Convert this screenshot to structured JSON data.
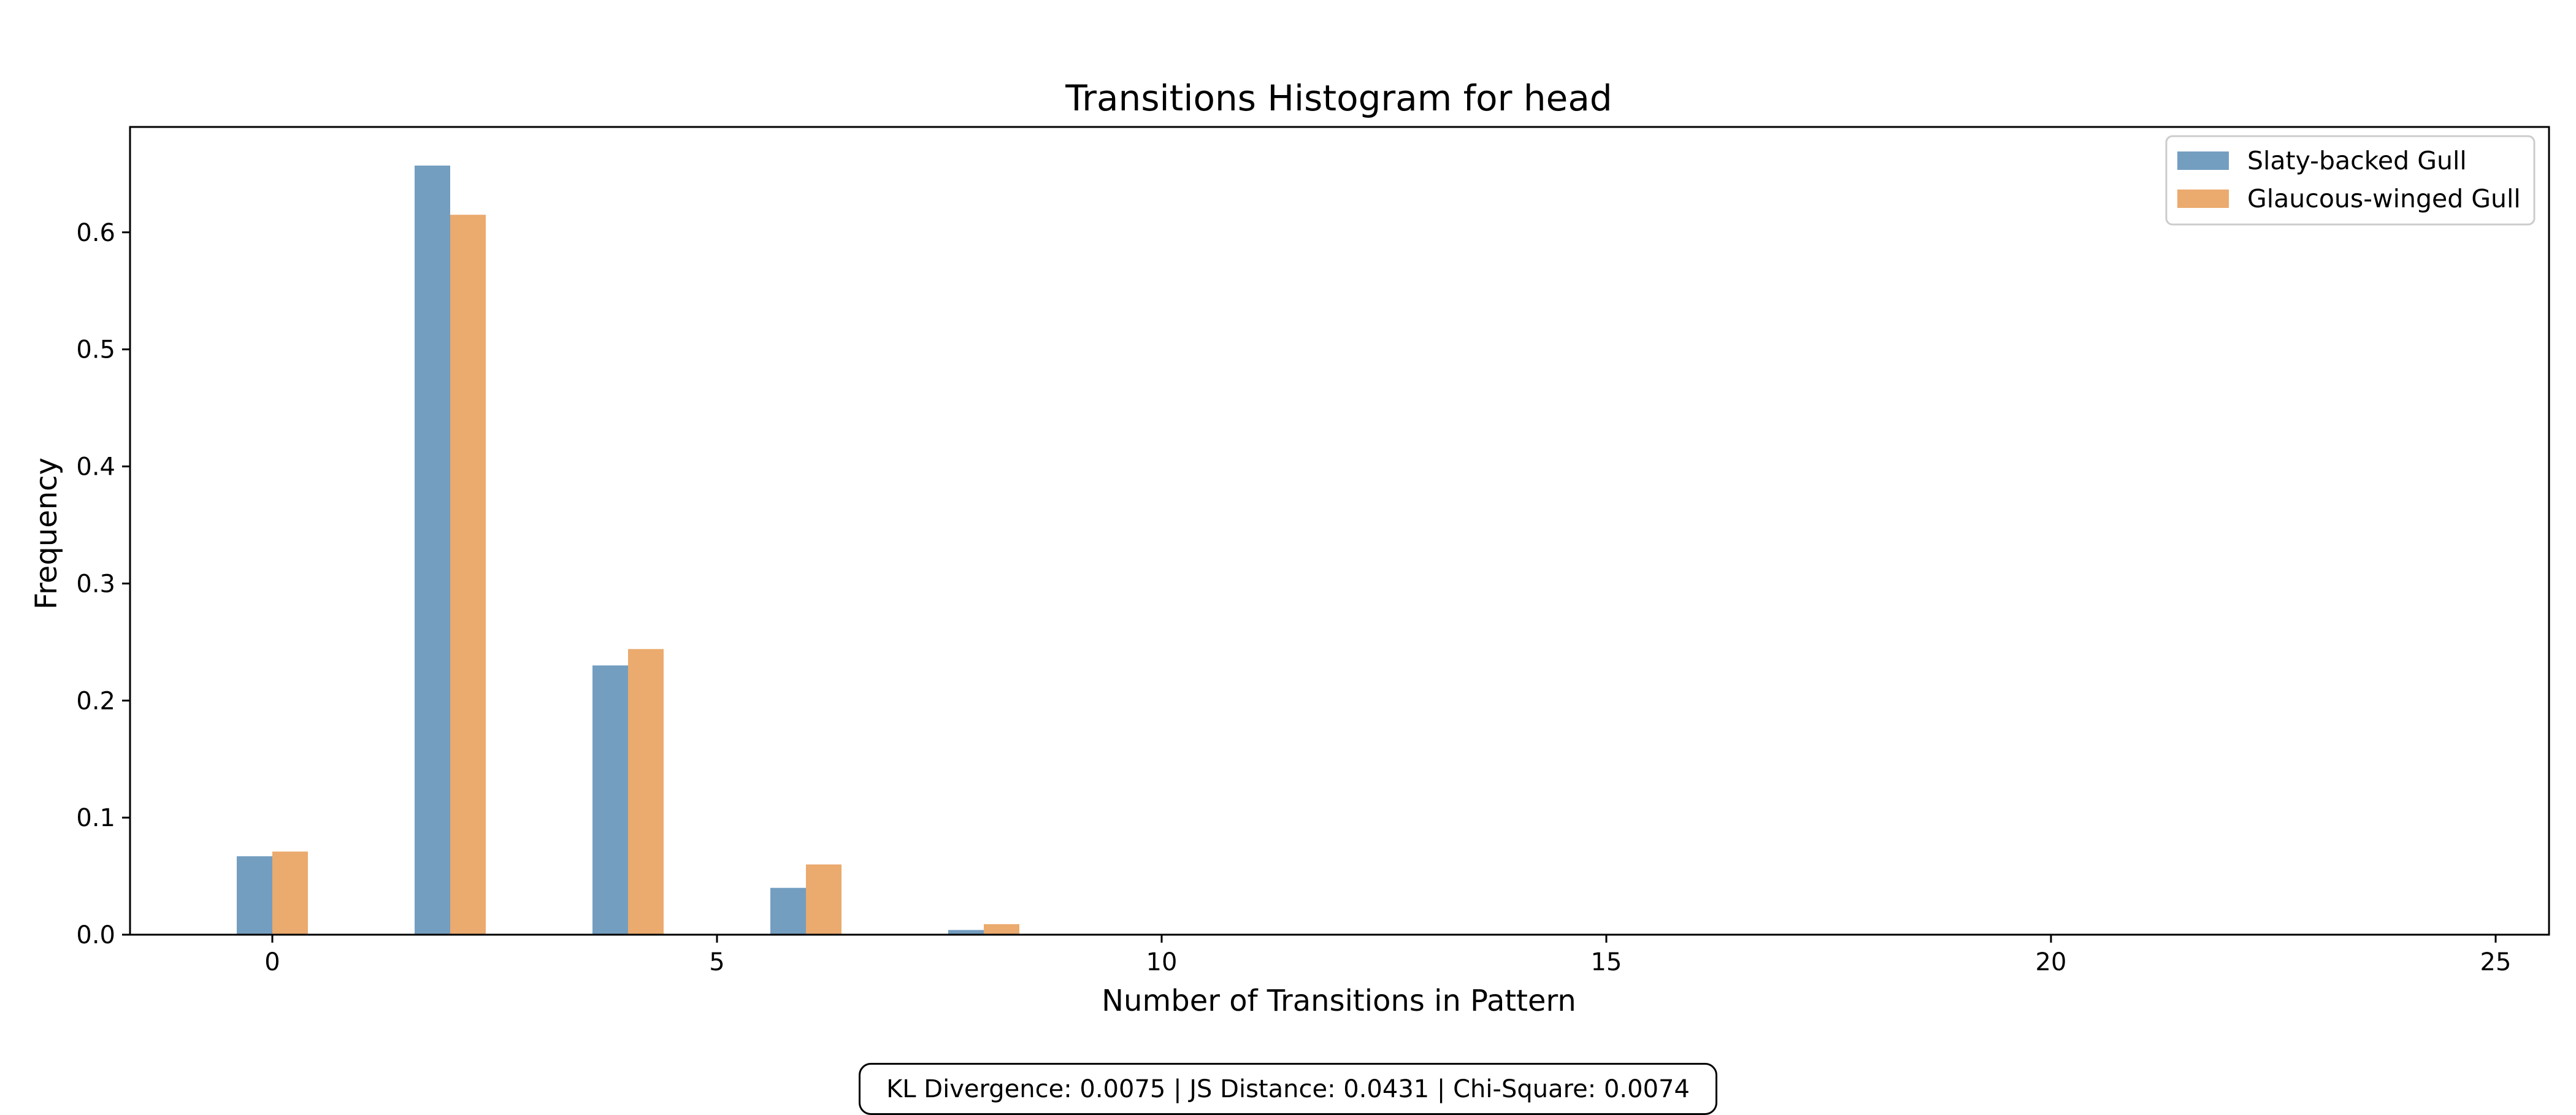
{
  "chart_data": {
    "type": "bar",
    "title": "Transitions Histogram for head",
    "xlabel": "Number of Transitions in Pattern",
    "ylabel": "Frequency",
    "xlim": [
      -1.6,
      25.6
    ],
    "ylim": [
      0,
      0.69
    ],
    "x": [
      0,
      2,
      4,
      6,
      8
    ],
    "bin_width": 0.8,
    "x_ticks": [
      0,
      5,
      10,
      15,
      20,
      25
    ],
    "y_ticks": [
      0.0,
      0.1,
      0.2,
      0.3,
      0.4,
      0.5,
      0.6
    ],
    "legend_position": "top-right",
    "grid": false,
    "series": [
      {
        "name": "Slaty-backed Gull",
        "color": "#5b8db5",
        "values": [
          0.067,
          0.657,
          0.23,
          0.04,
          0.004
        ]
      },
      {
        "name": "Glaucous-winged Gull",
        "color": "#e89b55",
        "values": [
          0.071,
          0.615,
          0.244,
          0.06,
          0.009
        ]
      }
    ]
  },
  "stats_text": "KL Divergence: 0.0075 | JS Distance: 0.0431 | Chi-Square: 0.0074"
}
